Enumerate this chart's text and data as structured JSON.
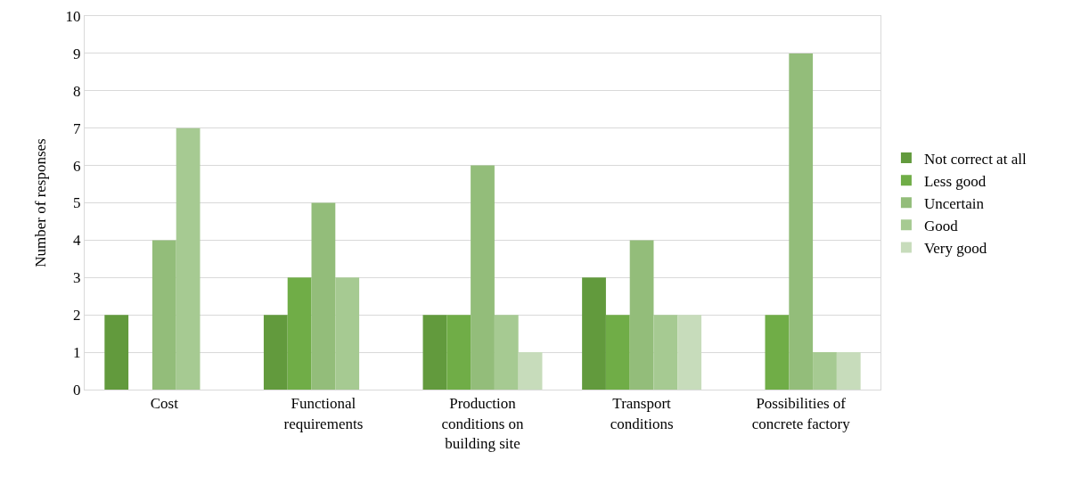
{
  "chart_data": {
    "type": "bar",
    "ylabel": "Number of responses",
    "categories": [
      "Cost",
      "Functional requirements",
      "Production conditions on building site",
      "Transport conditions",
      "Possibilities of concrete factory"
    ],
    "series": [
      {
        "name": "Not correct at all",
        "color": "#629a3d",
        "values": [
          2,
          2,
          2,
          3,
          0
        ]
      },
      {
        "name": "Less good",
        "color": "#70ad47",
        "values": [
          0,
          3,
          2,
          2,
          2
        ]
      },
      {
        "name": "Uncertain",
        "color": "#93bd7a",
        "values": [
          4,
          5,
          6,
          4,
          9
        ]
      },
      {
        "name": "Good",
        "color": "#a6ca92",
        "values": [
          7,
          3,
          2,
          2,
          1
        ]
      },
      {
        "name": "Very good",
        "color": "#c7dcbb",
        "values": [
          0,
          0,
          1,
          2,
          1
        ]
      }
    ],
    "ylim": [
      0,
      10
    ],
    "yticks": [
      0,
      1,
      2,
      3,
      4,
      5,
      6,
      7,
      8,
      9,
      10
    ],
    "grid": "y",
    "legend": "right"
  }
}
